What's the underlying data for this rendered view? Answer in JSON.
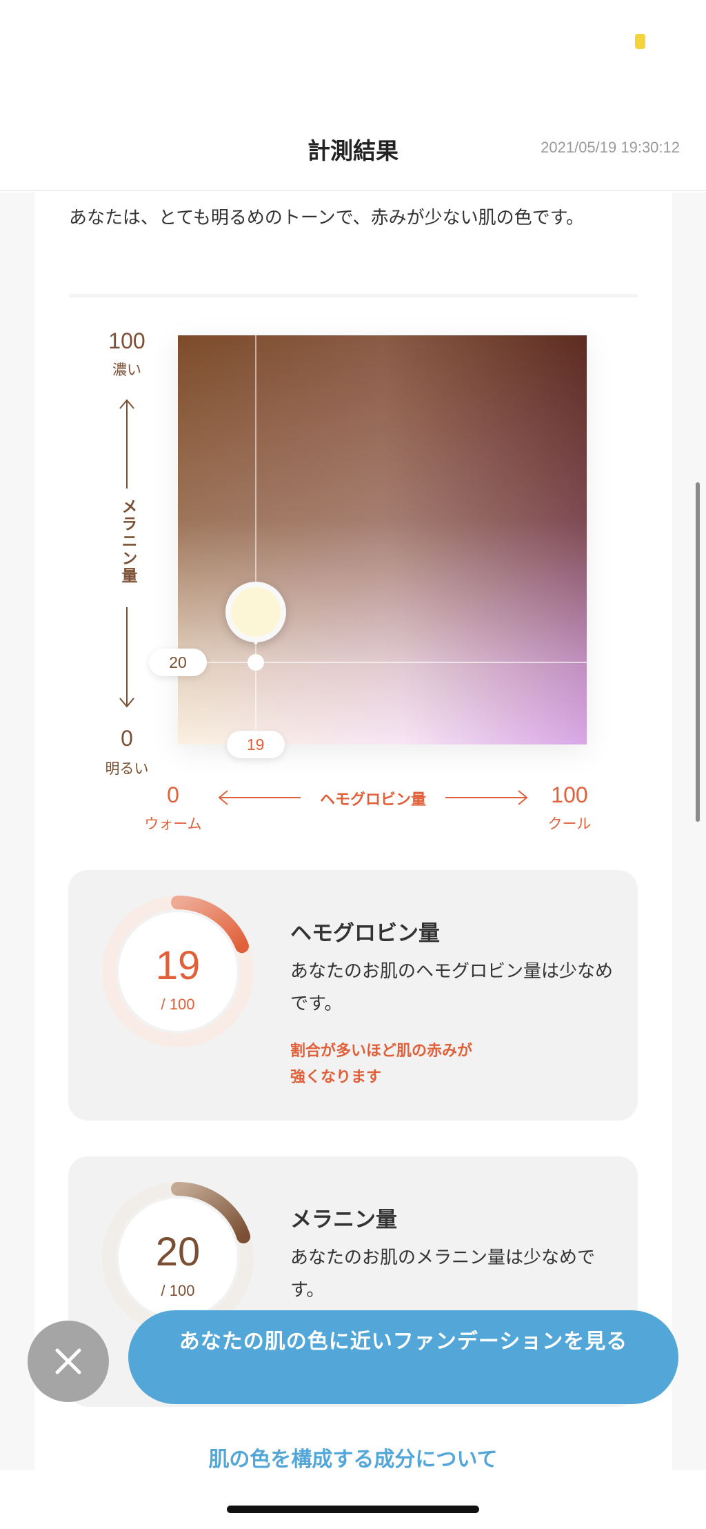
{
  "status_bar": {
    "indicator_color": "#f5d33a"
  },
  "header": {
    "title": "計測結果",
    "timestamp": "2021/05/19 19:30:12"
  },
  "summary": "あなたは、とても明るめのトーンで、赤みが少ない肌の色です。",
  "chart_data": {
    "type": "scatter",
    "x_axis": {
      "label": "ヘモグロビン量",
      "min": 0,
      "max": 100,
      "min_label": "0",
      "max_label": "100",
      "min_caption": "ウォーム",
      "max_caption": "クール",
      "color": "#e0603a"
    },
    "y_axis": {
      "label": "メラニン量",
      "min": 0,
      "max": 100,
      "min_label": "0",
      "max_label": "100",
      "min_caption": "明るい",
      "max_caption": "濃い",
      "color": "#7a4f33"
    },
    "point": {
      "x": 19,
      "y": 20,
      "x_label": "19",
      "y_label": "20",
      "swatch_color": "#fdf6d6"
    }
  },
  "cards": [
    {
      "title": "ヘモグロビン量",
      "value": "19",
      "value_num": 19,
      "of": "/ 100",
      "description": "あなたのお肌のヘモグロビン量は少なめです。",
      "note": "割合が多いほど肌の赤みが\n強くなります",
      "color": "#e0603a",
      "track": "#f9ebe6",
      "arc_start": "#eeaa95"
    },
    {
      "title": "メラニン量",
      "value": "20",
      "value_num": 20,
      "of": "/ 100",
      "description": "あなたのお肌のメラニン量は少なめです。",
      "color": "#7a4f33",
      "track": "#f1ede9",
      "arc_start": "#c2a994"
    }
  ],
  "cta": {
    "label": "あなたの肌の色に近いファンデーションを見る",
    "close_icon": "close-icon"
  },
  "link": "肌の色を構成する成分について"
}
